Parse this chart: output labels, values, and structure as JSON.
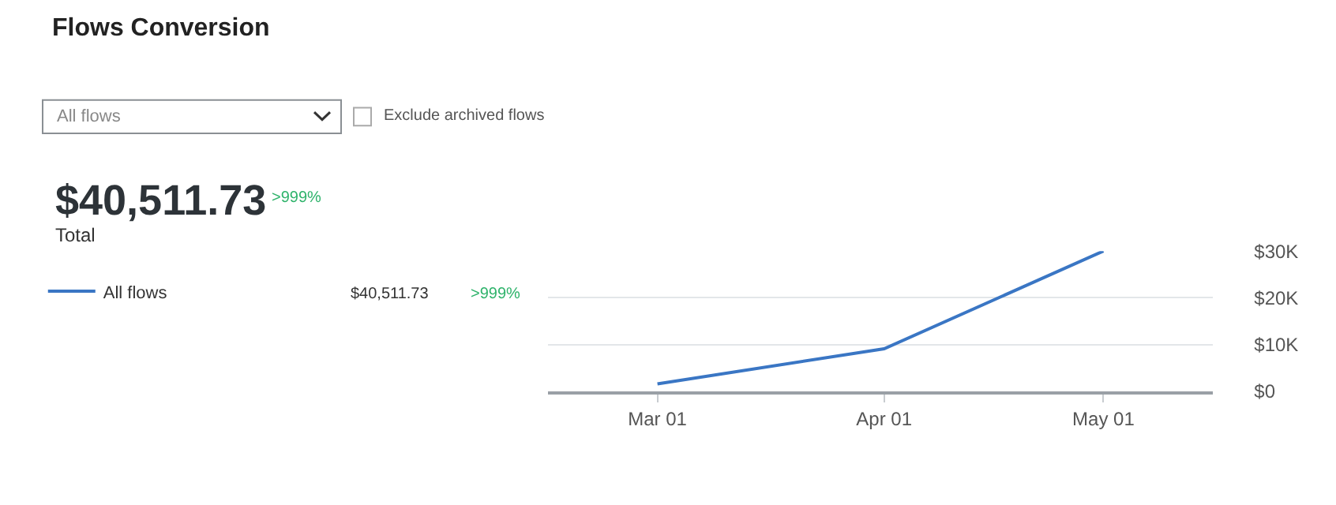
{
  "chart_data": {
    "type": "line",
    "title": "Flows Conversion",
    "x": [
      "--03-01",
      "--04-01",
      "--05-01"
    ],
    "series": [
      {
        "name": "All flows",
        "color": "#3a76c4",
        "values": [
          1600,
          9100,
          30000
        ]
      }
    ],
    "xlim": [
      "--02-14",
      "--05-16"
    ],
    "xticks": [
      {
        "value": "--03-01",
        "label": "Mar 01"
      },
      {
        "value": "--04-01",
        "label": "Apr 01"
      },
      {
        "value": "--05-01",
        "label": "May 01"
      }
    ],
    "ylim": [
      0,
      30000
    ],
    "yticks": [
      {
        "value": 0,
        "label": "$0"
      },
      {
        "value": 10000,
        "label": "$10K"
      },
      {
        "value": 20000,
        "label": "$20K"
      },
      {
        "value": 30000,
        "label": "$30K"
      }
    ],
    "grid": "y",
    "legend": "left",
    "marker": "none",
    "line_style": "solid",
    "annotations": [
      "All flows",
      "Exclude archived flows",
      "$40,511.73",
      ">999%",
      "Total",
      "$40,511.73",
      ">999%"
    ]
  }
}
